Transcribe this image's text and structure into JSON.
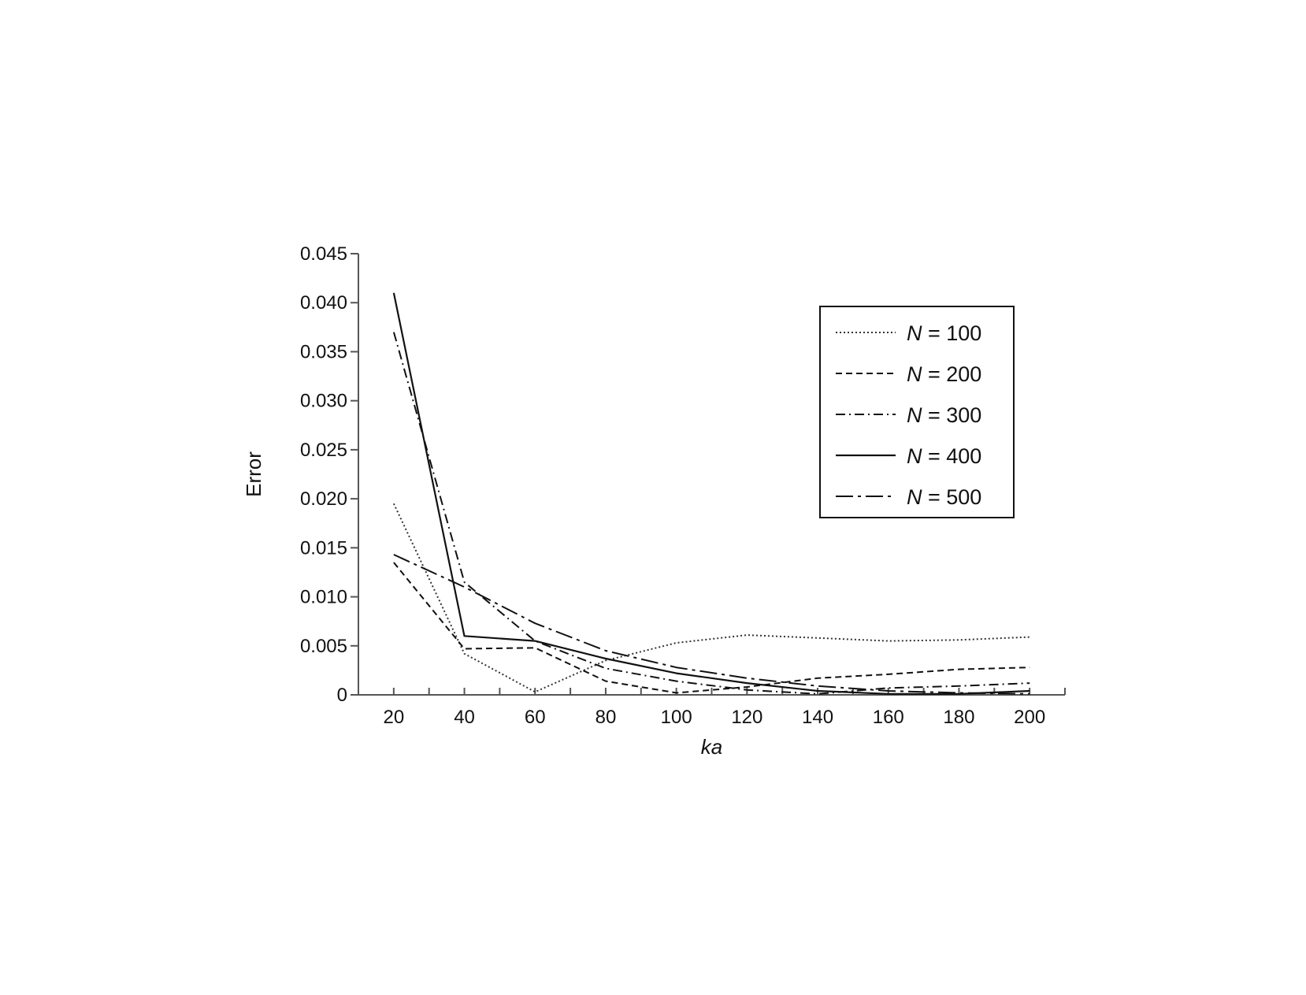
{
  "chart_data": {
    "type": "line",
    "xlabel": "ka",
    "ylabel": "Error",
    "xlim": [
      10,
      210
    ],
    "ylim": [
      0,
      0.045
    ],
    "xticks": [
      "20",
      "40",
      "60",
      "80",
      "100",
      "120",
      "140",
      "160",
      "180",
      "200"
    ],
    "yticks": [
      "0",
      "0.005",
      "0.010",
      "0.015",
      "0.020",
      "0.025",
      "0.030",
      "0.035",
      "0.040",
      "0.045"
    ],
    "legend_position": "top-right",
    "grid": false,
    "x": [
      20,
      40,
      60,
      80,
      100,
      120,
      140,
      160,
      180,
      200
    ],
    "series": [
      {
        "name_prefix": "N",
        "name_suffix": " = 100",
        "style": "dotted",
        "values": [
          0.0195,
          0.0042,
          0.0003,
          0.0035,
          0.0053,
          0.0061,
          0.0058,
          0.0055,
          0.0056,
          0.0059
        ]
      },
      {
        "name_prefix": "N",
        "name_suffix": " = 200",
        "style": "dashed",
        "values": [
          0.0135,
          0.0047,
          0.0048,
          0.0014,
          0.0002,
          0.0008,
          0.0017,
          0.0021,
          0.0026,
          0.0028
        ]
      },
      {
        "name_prefix": "N",
        "name_suffix": " = 300",
        "style": "dashdot",
        "values": [
          0.037,
          0.0115,
          0.0055,
          0.0027,
          0.0014,
          0.0005,
          0.0001,
          0.0007,
          0.0009,
          0.0012
        ]
      },
      {
        "name_prefix": "N",
        "name_suffix": " = 400",
        "style": "solid",
        "values": [
          0.041,
          0.006,
          0.0055,
          0.0037,
          0.0022,
          0.0012,
          0.0004,
          0.0001,
          0.0001,
          0.0004
        ]
      },
      {
        "name_prefix": "N",
        "name_suffix": " = 500",
        "style": "longdashdot",
        "values": [
          0.0143,
          0.011,
          0.0073,
          0.0045,
          0.0028,
          0.0017,
          0.0009,
          0.0004,
          0.0002,
          0.0001
        ]
      }
    ]
  }
}
